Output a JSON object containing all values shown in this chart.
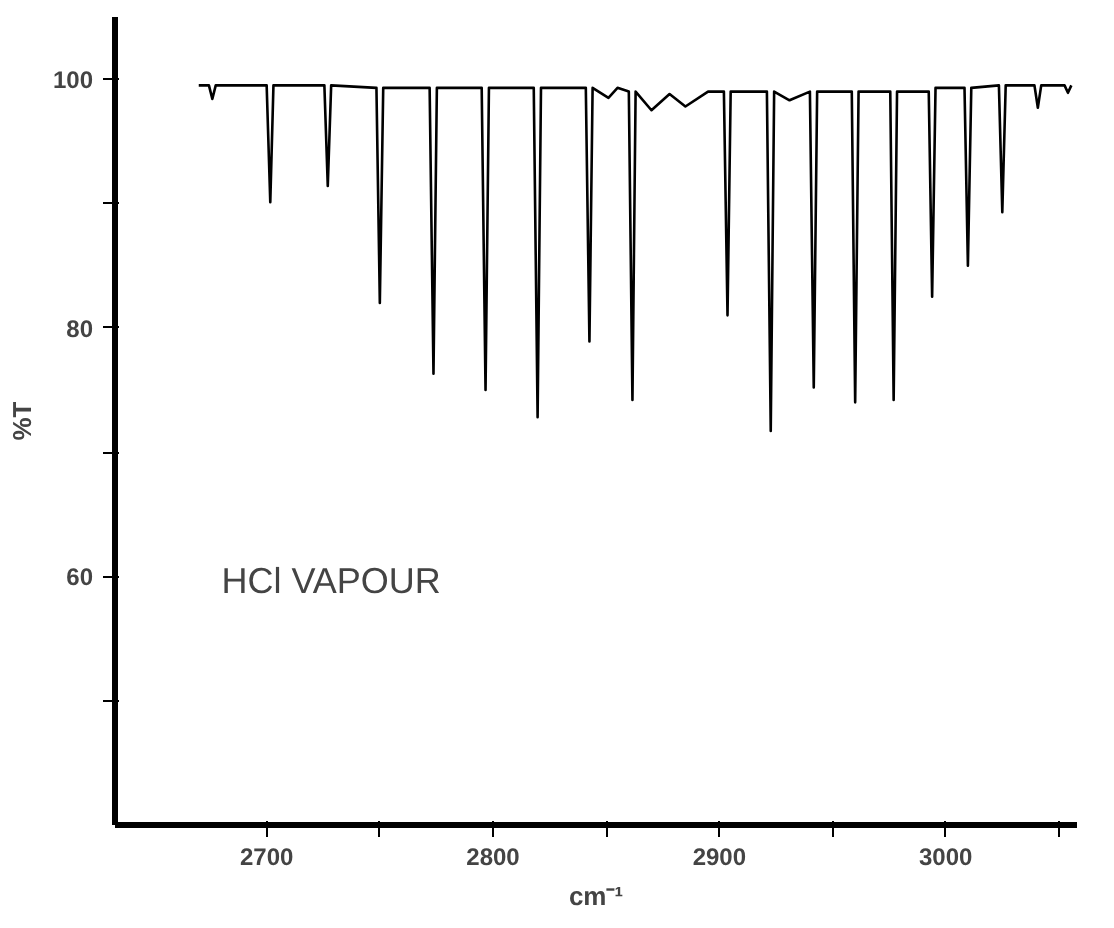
{
  "chart_data": {
    "type": "line",
    "xlabel": "cm⁻¹",
    "ylabel": "%T",
    "annotations": [
      "HCl VAPOUR"
    ],
    "xlim": [
      2633,
      3058
    ],
    "ylim": [
      40,
      105
    ],
    "xticks": [
      2700,
      {
        "value": 2750,
        "label": null
      },
      2800,
      {
        "value": 2850,
        "label": null
      },
      2900,
      {
        "value": 2950,
        "label": null
      },
      3000,
      {
        "value": 3050,
        "label": null
      }
    ],
    "yticks": [
      {
        "value": 50,
        "label": null
      },
      60,
      {
        "value": 70,
        "label": null
      },
      80,
      {
        "value": 90,
        "label": null
      },
      100
    ],
    "grid": false,
    "marker": "none",
    "line_style": "solid",
    "series": [
      {
        "color": "#000000",
        "x": [
          2670,
          2674.5,
          2676,
          2677.5,
          2700,
          2701.6,
          2703,
          2725.5,
          2727,
          2728.5,
          2748.5,
          2750,
          2751.5,
          2772,
          2773.7,
          2775.2,
          2795,
          2796.7,
          2798.2,
          2818,
          2819.7,
          2821.2,
          2841,
          2842.6,
          2844,
          2851,
          2855,
          2860,
          2861.6,
          2863,
          2870,
          2878,
          2885,
          2895,
          2902,
          2903.6,
          2905,
          2921,
          2922.7,
          2924.2,
          2931,
          2940,
          2941.7,
          2943.2,
          2958.5,
          2960,
          2961.5,
          2975.5,
          2977,
          2978.5,
          2992.5,
          2994,
          2995.5,
          3008.3,
          3009.8,
          3011.3,
          3023.5,
          3025,
          3026.5,
          3039.2,
          3040.7,
          3042.2,
          3052.5,
          3054,
          3055.5
        ],
        "values": [
          99.5,
          99.5,
          98.4,
          99.5,
          99.5,
          90.1,
          99.5,
          99.5,
          91.4,
          99.5,
          99.3,
          82,
          99.3,
          99.3,
          76.3,
          99.3,
          99.3,
          75,
          99.3,
          99.3,
          72.8,
          99.3,
          99.3,
          78.9,
          99.3,
          98.5,
          99.3,
          99,
          74.2,
          99,
          97.5,
          98.8,
          97.8,
          99,
          99,
          81,
          99,
          99,
          71.7,
          99,
          98.3,
          99,
          75.2,
          99,
          99,
          74,
          99,
          99,
          74.2,
          99,
          99,
          82.5,
          99.3,
          99.3,
          85,
          99.3,
          99.5,
          89.3,
          99.5,
          99.5,
          97.7,
          99.5,
          99.5,
          98.9,
          99.5
        ]
      }
    ]
  }
}
